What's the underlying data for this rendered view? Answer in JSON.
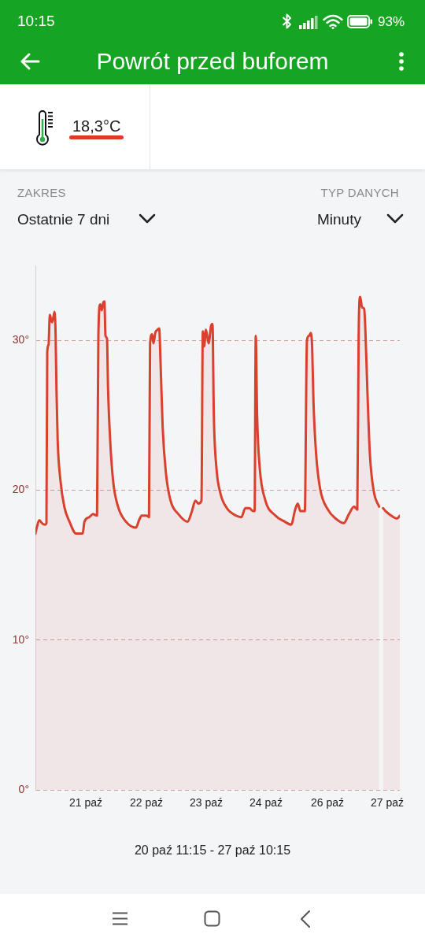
{
  "chart_data": {
    "type": "area",
    "title": "Powrót przed buforem",
    "annotations": [
      "10:15",
      "93%",
      "18,3°C",
      "ZAKRES",
      "Ostatnie 7 dni",
      "TYP DANYCH",
      "Minuty",
      "20 paź 11:15 - 27 paź 10:15"
    ],
    "x": [
      "--10-20T11:15",
      "--10-20T11:52",
      "--10-20T13:03",
      "--10-20T14:15",
      "--10-20T15:41",
      "--10-20T16:18",
      "--10-20T16:40",
      "--10-20T17:16",
      "--10-20T17:51",
      "--10-20T18:49",
      "--10-20T19:26",
      "--10-20T20:01",
      "--10-20T20:31",
      "--10-20T20:53",
      "--10-20T21:27",
      "--10-20T22:41",
      "--10-21T00:29",
      "--10-21T02:52",
      "--10-21T05:54",
      "--10-21T08:53",
      "--10-21T09:43",
      "--10-21T11:53",
      "--10-21T13:41",
      "--10-21T15:29",
      "--10-21T16:06",
      "--10-21T16:56",
      "--10-21T17:39",
      "--10-21T18:16",
      "--10-21T18:53",
      "--10-21T19:21",
      "--10-21T20:04",
      "--10-21T20:32",
      "--10-21T21:31",
      "--10-21T22:57",
      "--10-22T01:07",
      "--10-22T04:44",
      "--10-22T09:19",
      "--10-22T10:45",
      "--10-22T11:57",
      "--10-22T14:06",
      "--10-22T15:18",
      "--10-22T15:48",
      "--10-22T16:44",
      "--10-22T17:21",
      "--10-22T18:11",
      "--10-22T19:09",
      "--10-22T19:59",
      "--10-22T20:36",
      "--10-22T21:34",
      "--10-22T23:01",
      "--10-23T01:11",
      "--10-23T04:47",
      "--10-23T08:58",
      "--10-23T10:46",
      "--10-23T12:35",
      "--10-23T14:01",
      "--10-23T15:21",
      "--10-23T15:58",
      "--10-23T16:33",
      "--10-23T17:25",
      "--10-23T18:36",
      "--10-23T19:47",
      "--10-23T20:24",
      "--10-23T21:01",
      "--10-23T22:12",
      "--10-24T00:01",
      "--10-24T03:00",
      "--10-24T07:13",
      "--10-24T09:38",
      "--10-24T11:27",
      "--10-24T13:15",
      "--10-24T15:03",
      "--10-24T15:42",
      "--10-24T16:14",
      "--10-24T16:51",
      "--10-24T18:03",
      "--10-24T20:28",
      "--10-25T01:16",
      "--10-25T05:29",
      "--10-25T08:28",
      "--10-25T10:17",
      "--10-25T11:28",
      "--10-25T12:42",
      "--10-25T14:43",
      "--10-25T15:41",
      "--10-25T16:40",
      "--10-25T17:29",
      "--10-25T18:06",
      "--10-25T18:41",
      "--10-25T19:54",
      "--10-25T21:43",
      "--10-26T01:19",
      "--10-26T04:55",
      "--10-26T08:32",
      "--10-26T10:55",
      "--10-26T13:20",
      "--10-26T14:46",
      "--10-26T15:23",
      "--10-26T16:06",
      "--10-26T16:56",
      "--10-26T17:55",
      "--10-26T18:29",
      "--10-26T19:21",
      "--10-26T20:32",
      "--10-26T22:21",
      "--10-27T00:46",
      "--10-27T01:35",
      "--10-27T02:34",
      "--10-27T03:45",
      "--10-27T07:22",
      "--10-27T08:55",
      "--10-27T10:15"
    ],
    "series": [
      {
        "color": "#d9412e",
        "values": [
          17.1,
          17.5,
          18.0,
          17.8,
          17.7,
          17.8,
          29.2,
          29.7,
          31.7,
          31.2,
          31.5,
          31.9,
          30.3,
          26.8,
          23.3,
          20.7,
          18.9,
          17.9,
          17.1,
          17.1,
          17.9,
          18.2,
          18.4,
          18.3,
          30.3,
          32.4,
          32.0,
          32.5,
          32.6,
          30.3,
          30.1,
          26.8,
          23.3,
          20.5,
          18.9,
          17.9,
          17.5,
          18.0,
          18.3,
          18.3,
          18.2,
          29.8,
          30.4,
          29.8,
          30.5,
          30.7,
          30.8,
          28.5,
          24.2,
          21.2,
          19.3,
          18.4,
          17.9,
          18.5,
          19.3,
          19.1,
          19.3,
          30.6,
          29.6,
          30.7,
          29.8,
          31.0,
          31.1,
          25.0,
          21.5,
          19.8,
          18.8,
          18.3,
          18.2,
          18.8,
          18.8,
          18.6,
          18.6,
          30.3,
          25.0,
          21.5,
          19.4,
          18.3,
          17.9,
          17.7,
          18.7,
          19.1,
          18.6,
          18.6,
          30.0,
          30.3,
          30.5,
          29.4,
          25.9,
          22.4,
          20.1,
          18.7,
          18.1,
          17.8,
          18.4,
          18.9,
          18.7,
          30.3,
          32.9,
          32.2,
          32.1,
          30.6,
          26.8,
          22.4,
          19.9,
          18.9,
          null,
          18.8,
          18.6,
          18.2,
          18.1,
          18.3
        ]
      }
    ],
    "xlim": [
      "--10-20T11:15",
      "--10-27T10:15"
    ],
    "xticks": [
      {
        "value": "--10-21T10:20",
        "label": "21 paź"
      },
      {
        "value": "--10-22T14:06",
        "label": "22 paź"
      },
      {
        "value": "--10-23T17:31",
        "label": "23 paź"
      },
      {
        "value": "--10-24T20:56",
        "label": "24 paź"
      },
      {
        "value": "--10-26T01:04",
        "label": "26 paź"
      },
      {
        "value": "--10-27T04:29",
        "label": "27 paź"
      }
    ],
    "ylim": [
      0,
      35
    ],
    "yticks": [
      {
        "value": 0,
        "label": "0°"
      },
      {
        "value": 10,
        "label": "10°"
      },
      {
        "value": 20,
        "label": "20°"
      },
      {
        "value": 30,
        "label": "30°"
      }
    ],
    "grid": "y",
    "marker": "none"
  }
}
